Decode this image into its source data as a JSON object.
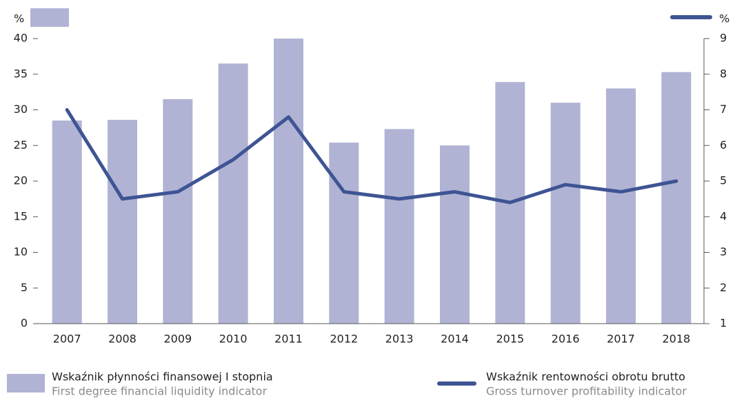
{
  "chart_data": {
    "type": "bar_line",
    "categories": [
      "2007",
      "2008",
      "2009",
      "2010",
      "2011",
      "2012",
      "2013",
      "2014",
      "2015",
      "2016",
      "2017",
      "2018"
    ],
    "series": [
      {
        "name": "Wskaźnik płynności finansowej I stopnia",
        "name_en": "First degree financial liquidity indicator",
        "type": "bar",
        "color": "#b0b3d4",
        "values": [
          28.5,
          28.6,
          31.5,
          36.5,
          40,
          25.4,
          27.3,
          25,
          33.9,
          31,
          33,
          35.3
        ]
      },
      {
        "name": "Wskaźnik rentowności obrotu brutto",
        "name_en": "Gross turnover profitability indicator",
        "type": "line",
        "color": "#3e5493",
        "axis": "y2",
        "values": [
          7.0,
          4.5,
          4.7,
          5.6,
          6.8,
          4.7,
          4.5,
          4.7,
          4.4,
          4.9,
          4.7,
          5.0
        ]
      }
    ],
    "y_unit": "%",
    "y2_unit": "%",
    "ylim": [
      0,
      40
    ],
    "yticks": [
      0,
      5,
      10,
      15,
      20,
      25,
      30,
      35,
      40
    ],
    "y2lim": [
      1,
      9
    ],
    "y2ticks": [
      1,
      2,
      3,
      4,
      5,
      6,
      7,
      8,
      9
    ]
  }
}
